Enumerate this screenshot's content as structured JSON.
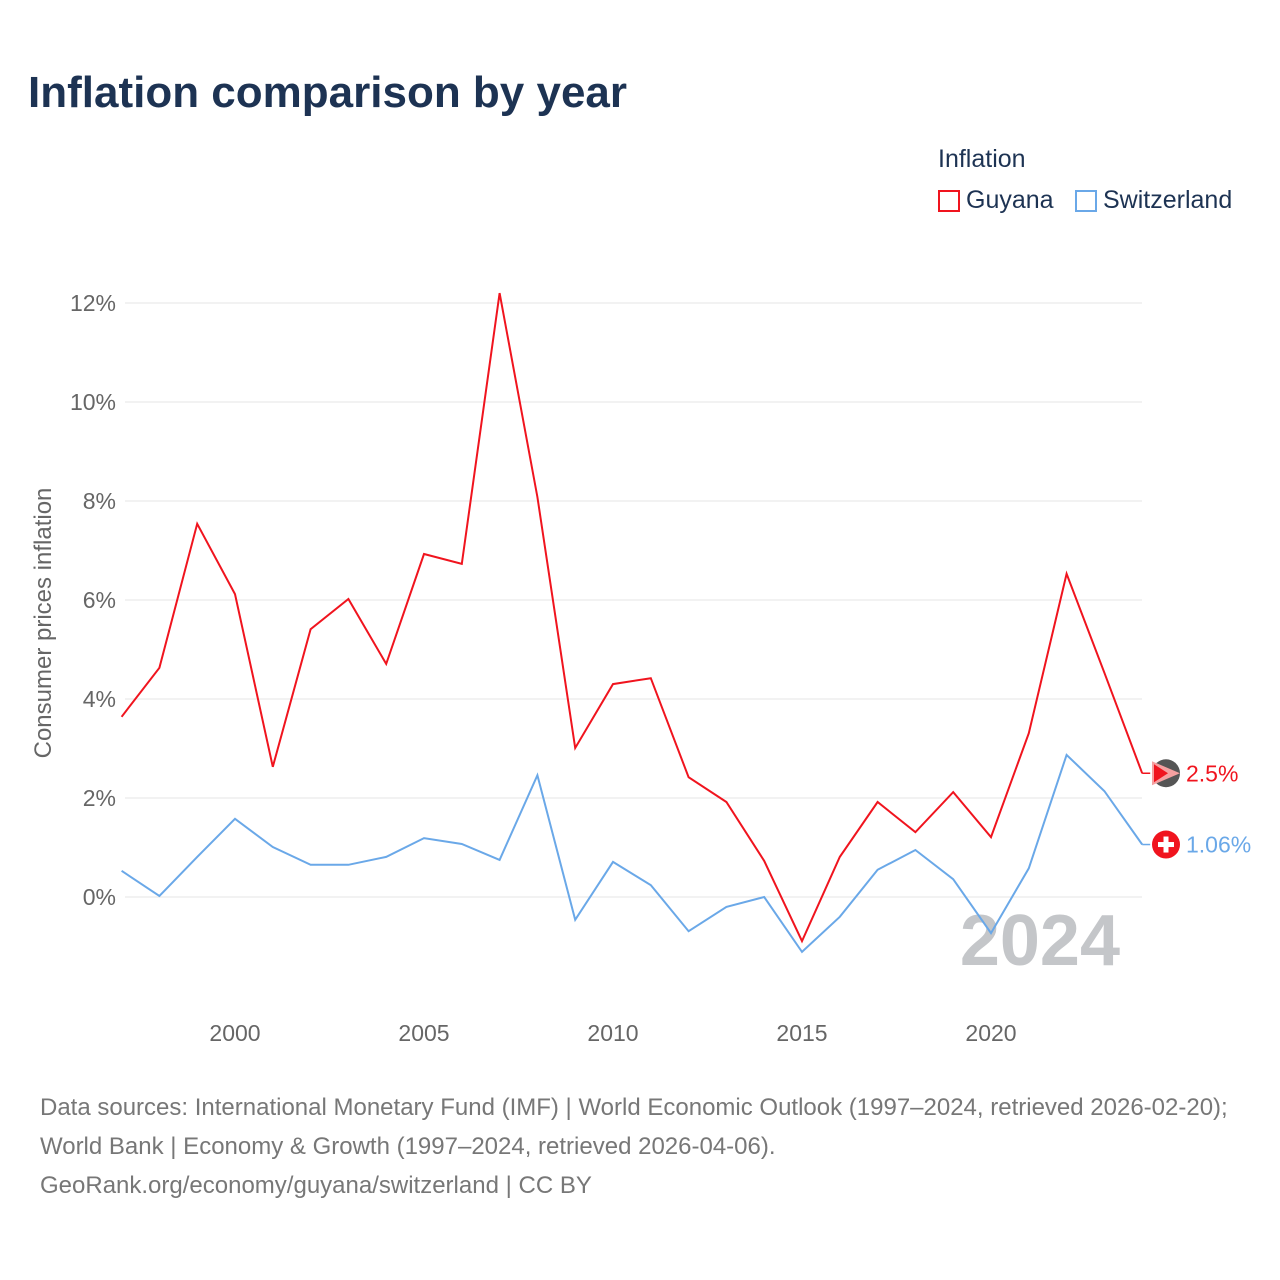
{
  "chart_data": {
    "type": "line",
    "title": "Inflation comparison by year",
    "ylabel": "Consumer prices inflation",
    "xlabel": "",
    "legend_title": "Inflation",
    "legend_placement": "top-right",
    "x": [
      1997,
      1998,
      1999,
      2000,
      2001,
      2002,
      2003,
      2004,
      2005,
      2006,
      2007,
      2008,
      2009,
      2010,
      2011,
      2012,
      2013,
      2014,
      2015,
      2016,
      2017,
      2018,
      2019,
      2020,
      2021,
      2022,
      2023,
      2024
    ],
    "series": [
      {
        "name": "Guyana",
        "color": "#f0141e",
        "end_label": "2.5%",
        "values": [
          3.64,
          4.63,
          7.54,
          6.12,
          2.63,
          5.41,
          6.02,
          4.71,
          6.93,
          6.73,
          12.2,
          8.08,
          3.01,
          4.3,
          4.42,
          2.42,
          1.92,
          0.73,
          -0.89,
          0.81,
          1.92,
          1.31,
          2.12,
          1.21,
          3.31,
          6.53,
          4.53,
          2.5
        ]
      },
      {
        "name": "Switzerland",
        "color": "#6aa8e8",
        "end_label": "1.06%",
        "values": [
          0.53,
          0.02,
          0.81,
          1.58,
          1.01,
          0.65,
          0.65,
          0.81,
          1.19,
          1.07,
          0.75,
          2.46,
          -0.46,
          0.71,
          0.24,
          -0.69,
          -0.2,
          0.0,
          -1.11,
          -0.4,
          0.55,
          0.95,
          0.36,
          -0.73,
          0.58,
          2.87,
          2.14,
          1.06
        ]
      }
    ],
    "y_ticks": [
      0,
      2,
      4,
      6,
      8,
      10,
      12
    ],
    "y_tick_labels": [
      "0%",
      "2%",
      "4%",
      "6%",
      "8%",
      "10%",
      "12%"
    ],
    "x_ticks": [
      2000,
      2005,
      2010,
      2015,
      2020
    ],
    "x_tick_labels": [
      "2000",
      "2005",
      "2010",
      "2015",
      "2020"
    ],
    "xlim": [
      1997,
      2024
    ],
    "ylim": [
      -2,
      12.4
    ],
    "grid": true,
    "year_watermark": "2024"
  },
  "source": {
    "line1": "Data sources: International Monetary Fund (IMF) | World Economic Outlook (1997–2024, retrieved 2026-02-20); World Bank | Economy & Growth (1997–2024, retrieved 2026-04-06).",
    "line2": "GeoRank.org/economy/guyana/switzerland | CC BY"
  }
}
